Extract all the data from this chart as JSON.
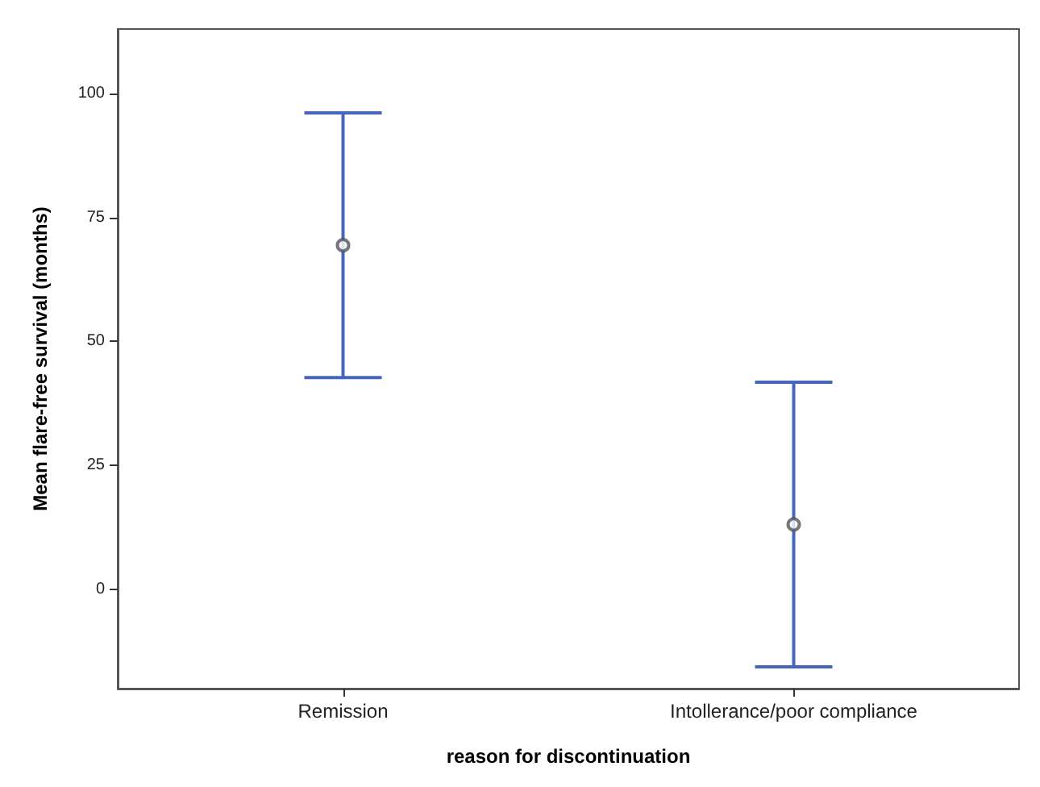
{
  "chart_data": {
    "type": "scatter",
    "xlabel": "reason for discontinuation",
    "ylabel": "Mean flare-free survival (months)",
    "categories": [
      "Remission",
      "Intollerance/poor compliance"
    ],
    "values": [
      69.4,
      13.1
    ],
    "errors": [
      26.7,
      28.7
    ],
    "color": "#555555",
    "ylim": [
      -20,
      113
    ],
    "yticks": [
      0,
      25,
      50,
      75,
      100
    ],
    "grid": false,
    "marker": "circle"
  }
}
